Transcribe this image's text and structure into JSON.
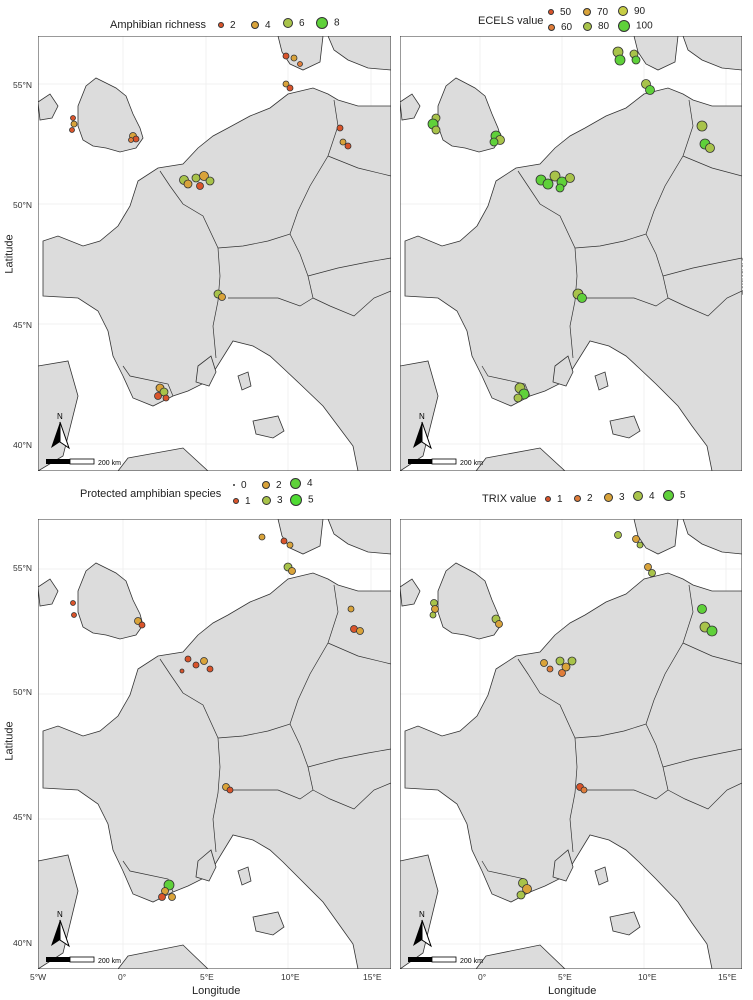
{
  "panels": {
    "top_left": {
      "legend": {
        "title": "Amphibian richness",
        "items": [
          {
            "label": "2",
            "color": "#d9542b"
          },
          {
            "label": "4",
            "color": "#d9a33a"
          },
          {
            "label": "6",
            "color": "#a8c34a"
          },
          {
            "label": "8",
            "color": "#5fd13a"
          }
        ]
      },
      "ylabel": "Latitude",
      "yticks": [
        "55°N",
        "50°N",
        "45°N",
        "40°N"
      ],
      "scalebar": "200 km"
    },
    "top_right": {
      "legend": {
        "title": "ECELS value",
        "items": [
          {
            "label": "50",
            "color": "#d9542b"
          },
          {
            "label": "70",
            "color": "#d9a33a"
          },
          {
            "label": "90",
            "color": "#c6cd45"
          },
          {
            "label": "60",
            "color": "#e07d3a"
          },
          {
            "label": "80",
            "color": "#a8c34a"
          },
          {
            "label": "100",
            "color": "#5fd13a"
          }
        ]
      },
      "ylabel": "Latitude",
      "yticks": [
        "55°N",
        "50°N",
        "45°N",
        "40°N"
      ],
      "scalebar": "200 km"
    },
    "bottom_left": {
      "legend": {
        "title": "Protected amphibian species",
        "items": [
          {
            "label": "0",
            "color": "#333333"
          },
          {
            "label": "2",
            "color": "#d9a33a"
          },
          {
            "label": "4",
            "color": "#5fd13a"
          },
          {
            "label": "1",
            "color": "#d9542b"
          },
          {
            "label": "3",
            "color": "#a8c34a"
          },
          {
            "label": "5",
            "color": "#4fdb33"
          }
        ]
      },
      "ylabel": "Latitude",
      "yticks": [
        "55°N",
        "50°N",
        "45°N",
        "40°N"
      ],
      "xticks": [
        "5°W",
        "0°",
        "5°E",
        "10°E",
        "15°E"
      ],
      "xlabel": "Longitude",
      "scalebar": "200 km"
    },
    "bottom_right": {
      "legend": {
        "title": "TRIX value",
        "items": [
          {
            "label": "1",
            "color": "#d9542b"
          },
          {
            "label": "2",
            "color": "#e07d3a"
          },
          {
            "label": "3",
            "color": "#d9a33a"
          },
          {
            "label": "4",
            "color": "#a8c34a"
          },
          {
            "label": "5",
            "color": "#5fd13a"
          }
        ]
      },
      "yticks": [
        "55°N",
        "50°N",
        "45°N",
        "40°N"
      ],
      "xticks": [
        "0°",
        "5°E",
        "10°E",
        "15°E"
      ],
      "xlabel": "Longitude",
      "scalebar": "200 km"
    }
  },
  "map_style": {
    "land": "#dcdcdc",
    "sea": "#ffffff",
    "border": "#333333"
  },
  "north_arrow": "N"
}
